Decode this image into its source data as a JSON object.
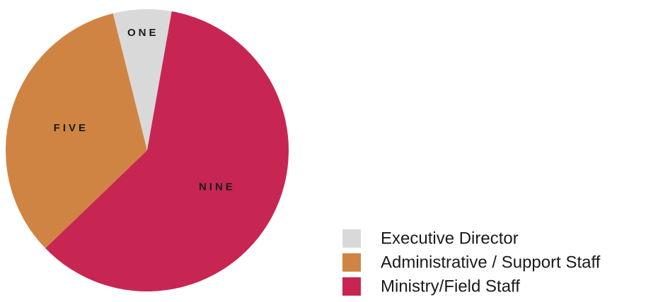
{
  "chart_data": {
    "type": "pie",
    "title": "",
    "start_angle_deg": 10,
    "direction": "counterclockwise",
    "slices": [
      {
        "name": "Executive Director",
        "value": 1,
        "label": "ONE",
        "color": "#d9d9d9"
      },
      {
        "name": "Administrative / Support Staff",
        "value": 5,
        "label": "FIVE",
        "color": "#d08444"
      },
      {
        "name": "Ministry/Field Staff",
        "value": 9,
        "label": "NINE",
        "color": "#c72653"
      }
    ],
    "legend": {
      "placement": "bottom-right",
      "entries": [
        {
          "label": "Executive Director",
          "color": "#d9d9d9"
        },
        {
          "label": "Administrative / Support Staff",
          "color": "#d08444"
        },
        {
          "label": "Ministry/Field Staff",
          "color": "#c72653"
        }
      ]
    }
  }
}
